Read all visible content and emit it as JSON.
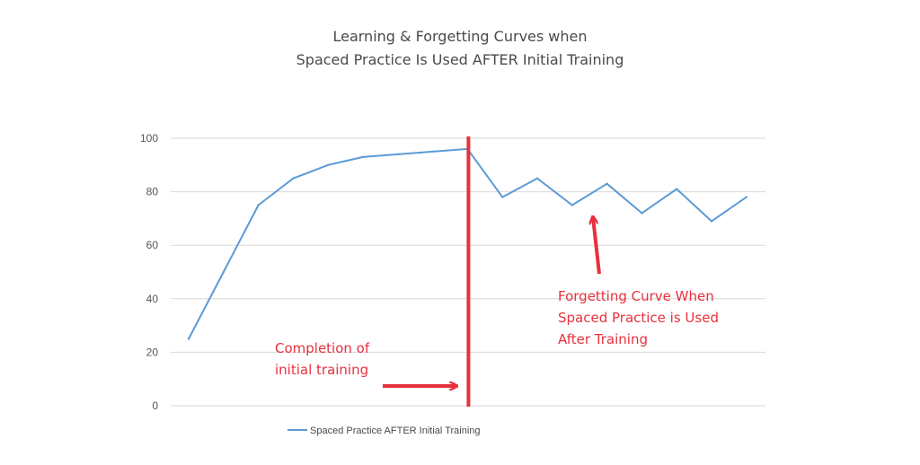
{
  "chart_data": {
    "type": "line",
    "title": "Learning & Forgetting Curves when",
    "subtitle": "Spaced Practice Is Used AFTER Initial Training",
    "xlabel": "",
    "ylabel": "",
    "ylim": [
      0,
      100
    ],
    "yticks": [
      0,
      20,
      40,
      60,
      80,
      100
    ],
    "grid": true,
    "legend_position": "bottom",
    "x": [
      1,
      2,
      3,
      4,
      5,
      6,
      7,
      8,
      9,
      10,
      11,
      12,
      13,
      14,
      15,
      16,
      17
    ],
    "series": [
      {
        "name": "Spaced Practice AFTER Initial Training",
        "color": "#5b9bd5",
        "values": [
          25,
          50,
          75,
          85,
          90,
          93,
          94,
          95,
          96,
          78,
          85,
          75,
          83,
          72,
          81,
          69,
          78
        ]
      }
    ],
    "marker_line": {
      "x_after_point": 9,
      "color": "#e8313e"
    },
    "annotations": [
      {
        "lines": [
          "Completion of",
          "initial training"
        ],
        "color": "#e8313e"
      },
      {
        "lines": [
          "Forgetting Curve When",
          "Spaced Practice is Used",
          "After Training"
        ],
        "color": "#e8313e"
      }
    ]
  }
}
